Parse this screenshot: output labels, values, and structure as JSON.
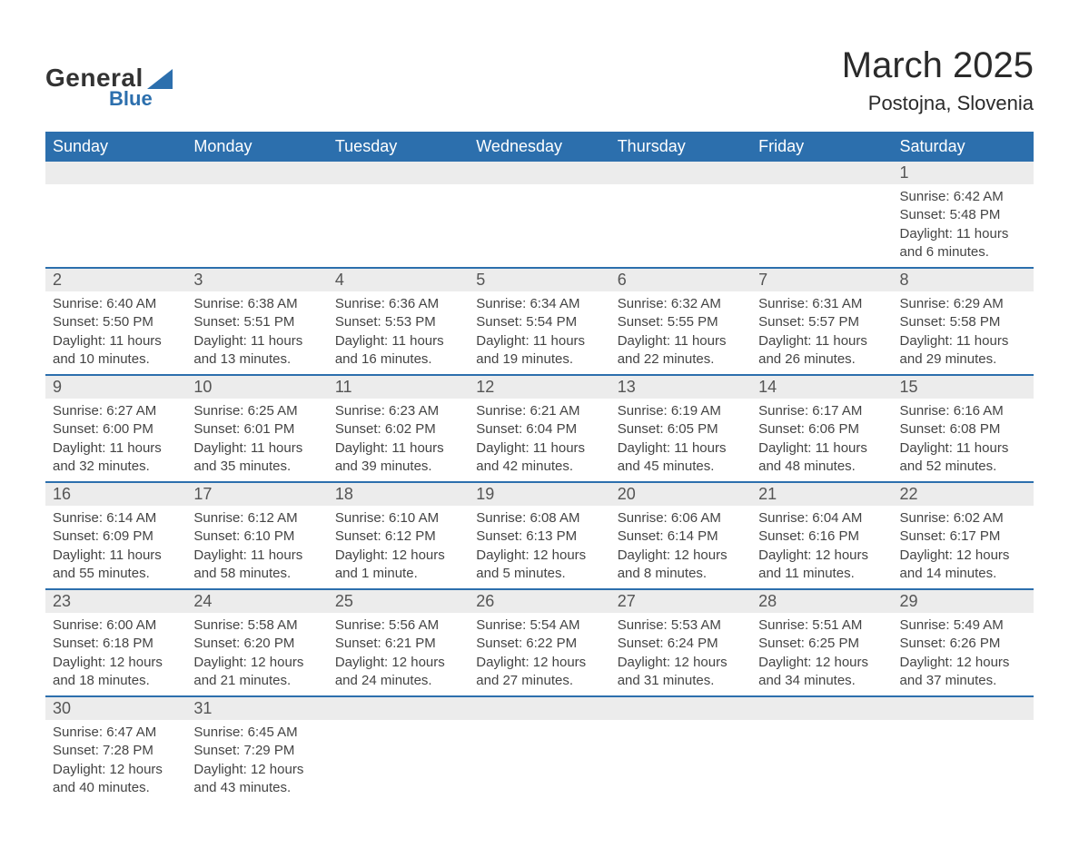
{
  "logo": {
    "word1": "General",
    "word2": "Blue"
  },
  "title": {
    "month": "March 2025",
    "location": "Postojna, Slovenia"
  },
  "style": {
    "header_bg": "#2c6fad",
    "header_fg": "#ffffff",
    "daynum_bg": "#ececec",
    "row_divider": "#2c6fad",
    "body_text": "#444444",
    "page_bg": "#ffffff",
    "title_fontsize": 40,
    "location_fontsize": 22,
    "dayhdr_fontsize": 18,
    "cell_fontsize": 15
  },
  "day_headers": [
    "Sunday",
    "Monday",
    "Tuesday",
    "Wednesday",
    "Thursday",
    "Friday",
    "Saturday"
  ],
  "weeks": [
    [
      null,
      null,
      null,
      null,
      null,
      null,
      {
        "n": "1",
        "sunrise": "Sunrise: 6:42 AM",
        "sunset": "Sunset: 5:48 PM",
        "daylight": "Daylight: 11 hours and 6 minutes."
      }
    ],
    [
      {
        "n": "2",
        "sunrise": "Sunrise: 6:40 AM",
        "sunset": "Sunset: 5:50 PM",
        "daylight": "Daylight: 11 hours and 10 minutes."
      },
      {
        "n": "3",
        "sunrise": "Sunrise: 6:38 AM",
        "sunset": "Sunset: 5:51 PM",
        "daylight": "Daylight: 11 hours and 13 minutes."
      },
      {
        "n": "4",
        "sunrise": "Sunrise: 6:36 AM",
        "sunset": "Sunset: 5:53 PM",
        "daylight": "Daylight: 11 hours and 16 minutes."
      },
      {
        "n": "5",
        "sunrise": "Sunrise: 6:34 AM",
        "sunset": "Sunset: 5:54 PM",
        "daylight": "Daylight: 11 hours and 19 minutes."
      },
      {
        "n": "6",
        "sunrise": "Sunrise: 6:32 AM",
        "sunset": "Sunset: 5:55 PM",
        "daylight": "Daylight: 11 hours and 22 minutes."
      },
      {
        "n": "7",
        "sunrise": "Sunrise: 6:31 AM",
        "sunset": "Sunset: 5:57 PM",
        "daylight": "Daylight: 11 hours and 26 minutes."
      },
      {
        "n": "8",
        "sunrise": "Sunrise: 6:29 AM",
        "sunset": "Sunset: 5:58 PM",
        "daylight": "Daylight: 11 hours and 29 minutes."
      }
    ],
    [
      {
        "n": "9",
        "sunrise": "Sunrise: 6:27 AM",
        "sunset": "Sunset: 6:00 PM",
        "daylight": "Daylight: 11 hours and 32 minutes."
      },
      {
        "n": "10",
        "sunrise": "Sunrise: 6:25 AM",
        "sunset": "Sunset: 6:01 PM",
        "daylight": "Daylight: 11 hours and 35 minutes."
      },
      {
        "n": "11",
        "sunrise": "Sunrise: 6:23 AM",
        "sunset": "Sunset: 6:02 PM",
        "daylight": "Daylight: 11 hours and 39 minutes."
      },
      {
        "n": "12",
        "sunrise": "Sunrise: 6:21 AM",
        "sunset": "Sunset: 6:04 PM",
        "daylight": "Daylight: 11 hours and 42 minutes."
      },
      {
        "n": "13",
        "sunrise": "Sunrise: 6:19 AM",
        "sunset": "Sunset: 6:05 PM",
        "daylight": "Daylight: 11 hours and 45 minutes."
      },
      {
        "n": "14",
        "sunrise": "Sunrise: 6:17 AM",
        "sunset": "Sunset: 6:06 PM",
        "daylight": "Daylight: 11 hours and 48 minutes."
      },
      {
        "n": "15",
        "sunrise": "Sunrise: 6:16 AM",
        "sunset": "Sunset: 6:08 PM",
        "daylight": "Daylight: 11 hours and 52 minutes."
      }
    ],
    [
      {
        "n": "16",
        "sunrise": "Sunrise: 6:14 AM",
        "sunset": "Sunset: 6:09 PM",
        "daylight": "Daylight: 11 hours and 55 minutes."
      },
      {
        "n": "17",
        "sunrise": "Sunrise: 6:12 AM",
        "sunset": "Sunset: 6:10 PM",
        "daylight": "Daylight: 11 hours and 58 minutes."
      },
      {
        "n": "18",
        "sunrise": "Sunrise: 6:10 AM",
        "sunset": "Sunset: 6:12 PM",
        "daylight": "Daylight: 12 hours and 1 minute."
      },
      {
        "n": "19",
        "sunrise": "Sunrise: 6:08 AM",
        "sunset": "Sunset: 6:13 PM",
        "daylight": "Daylight: 12 hours and 5 minutes."
      },
      {
        "n": "20",
        "sunrise": "Sunrise: 6:06 AM",
        "sunset": "Sunset: 6:14 PM",
        "daylight": "Daylight: 12 hours and 8 minutes."
      },
      {
        "n": "21",
        "sunrise": "Sunrise: 6:04 AM",
        "sunset": "Sunset: 6:16 PM",
        "daylight": "Daylight: 12 hours and 11 minutes."
      },
      {
        "n": "22",
        "sunrise": "Sunrise: 6:02 AM",
        "sunset": "Sunset: 6:17 PM",
        "daylight": "Daylight: 12 hours and 14 minutes."
      }
    ],
    [
      {
        "n": "23",
        "sunrise": "Sunrise: 6:00 AM",
        "sunset": "Sunset: 6:18 PM",
        "daylight": "Daylight: 12 hours and 18 minutes."
      },
      {
        "n": "24",
        "sunrise": "Sunrise: 5:58 AM",
        "sunset": "Sunset: 6:20 PM",
        "daylight": "Daylight: 12 hours and 21 minutes."
      },
      {
        "n": "25",
        "sunrise": "Sunrise: 5:56 AM",
        "sunset": "Sunset: 6:21 PM",
        "daylight": "Daylight: 12 hours and 24 minutes."
      },
      {
        "n": "26",
        "sunrise": "Sunrise: 5:54 AM",
        "sunset": "Sunset: 6:22 PM",
        "daylight": "Daylight: 12 hours and 27 minutes."
      },
      {
        "n": "27",
        "sunrise": "Sunrise: 5:53 AM",
        "sunset": "Sunset: 6:24 PM",
        "daylight": "Daylight: 12 hours and 31 minutes."
      },
      {
        "n": "28",
        "sunrise": "Sunrise: 5:51 AM",
        "sunset": "Sunset: 6:25 PM",
        "daylight": "Daylight: 12 hours and 34 minutes."
      },
      {
        "n": "29",
        "sunrise": "Sunrise: 5:49 AM",
        "sunset": "Sunset: 6:26 PM",
        "daylight": "Daylight: 12 hours and 37 minutes."
      }
    ],
    [
      {
        "n": "30",
        "sunrise": "Sunrise: 6:47 AM",
        "sunset": "Sunset: 7:28 PM",
        "daylight": "Daylight: 12 hours and 40 minutes."
      },
      {
        "n": "31",
        "sunrise": "Sunrise: 6:45 AM",
        "sunset": "Sunset: 7:29 PM",
        "daylight": "Daylight: 12 hours and 43 minutes."
      },
      null,
      null,
      null,
      null,
      null
    ]
  ]
}
